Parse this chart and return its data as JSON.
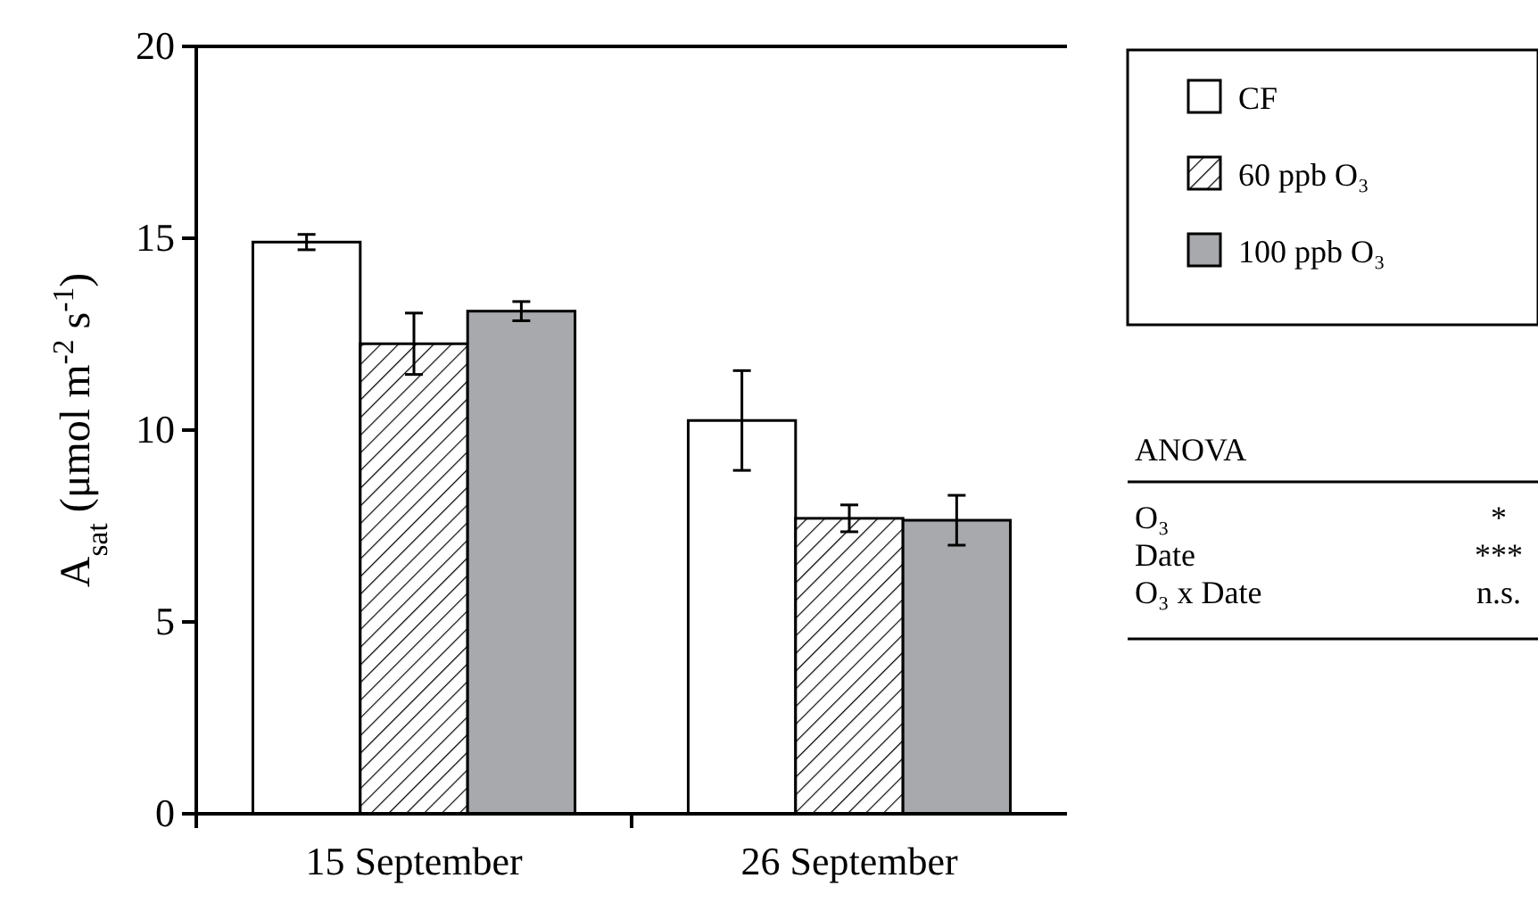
{
  "chart_data": {
    "type": "bar",
    "ylabel": "A$_{sat}$ (μmol m$^{-2}$ s$^{-1}$)",
    "categories": [
      "15 September",
      "26 September"
    ],
    "series": [
      {
        "name": "CF",
        "color": "#ffffff",
        "values": [
          14.9,
          10.25
        ],
        "errors": [
          0.2,
          1.3
        ]
      },
      {
        "name": "60 ppb O₃",
        "color": "#000000",
        "values": [
          12.25,
          7.7
        ],
        "errors": [
          0.8,
          0.35
        ]
      },
      {
        "name": "100 ppb O₃",
        "color": "#a7a9ac",
        "values": [
          13.1,
          7.65
        ],
        "errors": [
          0.25,
          0.65
        ]
      }
    ],
    "ylim": [
      0,
      20
    ],
    "yticks": [
      0,
      5,
      10,
      15,
      20
    ],
    "grid": false,
    "legend": "top right",
    "annotations": [
      "ANOVA",
      "O₃",
      "*",
      "Date",
      "***",
      "O₃ x Date",
      "n.s."
    ]
  }
}
